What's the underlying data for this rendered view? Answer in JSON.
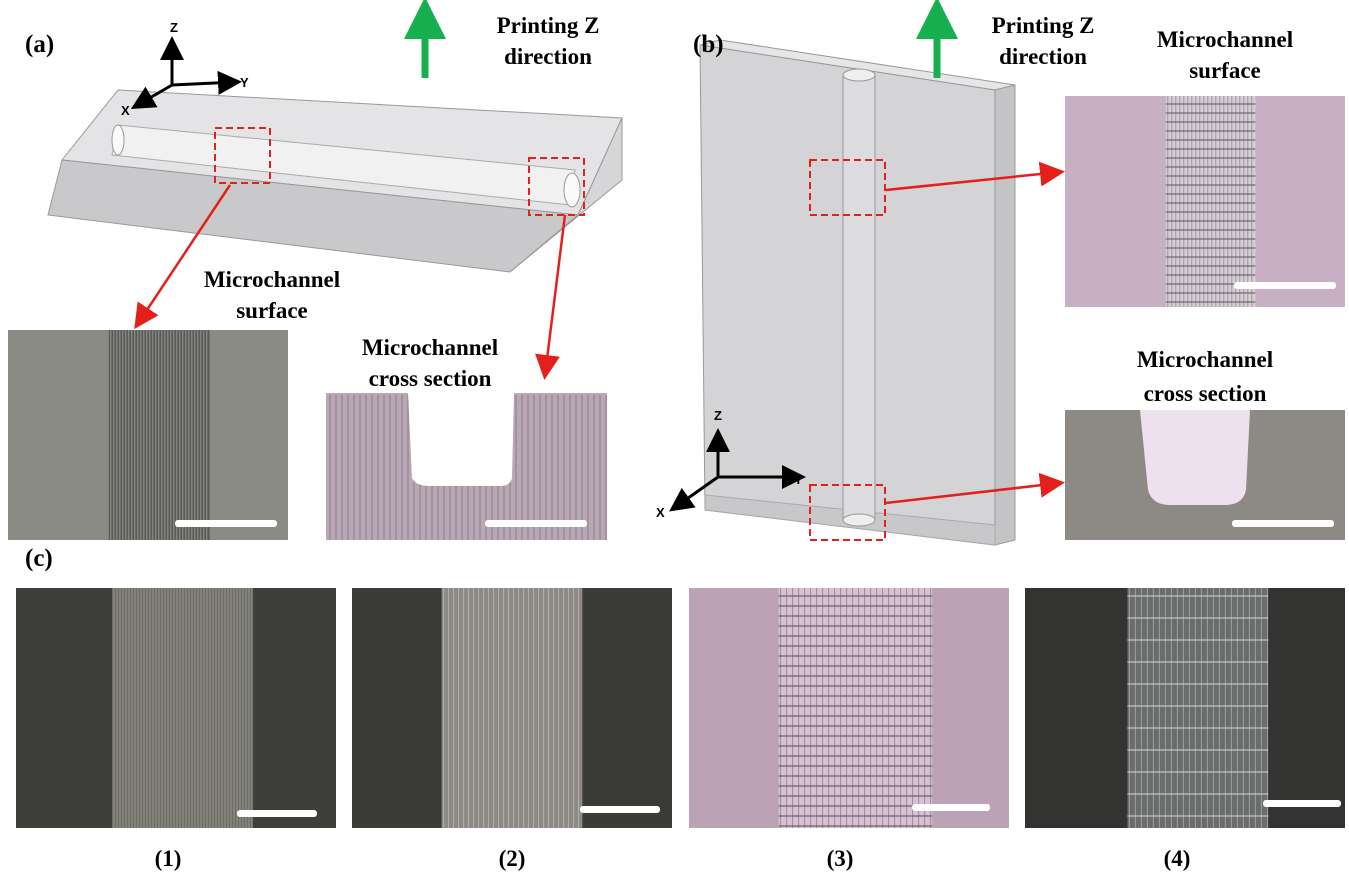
{
  "panels": [
    {
      "label": "(a)",
      "arrow_label": [
        "Printing Z",
        "direction"
      ],
      "axes": [
        "Z",
        "Y",
        "X"
      ],
      "insets": [
        {
          "title": [
            "Microchannel",
            "surface"
          ]
        },
        {
          "title": [
            "Microchannel",
            "cross section"
          ]
        }
      ]
    },
    {
      "label": "(b)",
      "arrow_label": [
        "Printing Z",
        "direction"
      ],
      "axes": [
        "Z",
        "Y",
        "X"
      ],
      "insets": [
        {
          "title": [
            "Microchannel",
            "surface"
          ]
        },
        {
          "title": [
            "Microchannel",
            "cross section"
          ]
        }
      ]
    },
    {
      "label": "(c)",
      "images": [
        "(1)",
        "(2)",
        "(3)",
        "(4)"
      ]
    }
  ]
}
